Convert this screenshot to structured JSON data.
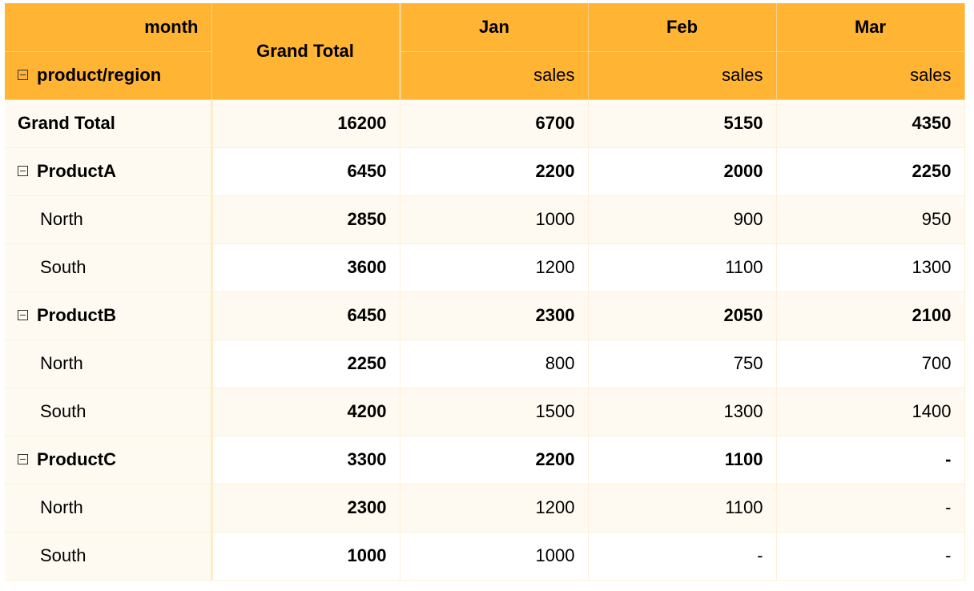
{
  "header": {
    "column_dimension_label": "month",
    "row_dimension_label": "product/region",
    "grand_total_label": "Grand Total",
    "months": [
      "Jan",
      "Feb",
      "Mar"
    ],
    "measure_label": "sales"
  },
  "rows": [
    {
      "label": "Grand Total",
      "level": "total",
      "collapsible": false,
      "grand": "16200",
      "values": [
        "6700",
        "5150",
        "4350"
      ]
    },
    {
      "label": "ProductA",
      "level": "group",
      "collapsible": true,
      "grand": "6450",
      "values": [
        "2200",
        "2000",
        "2250"
      ]
    },
    {
      "label": "North",
      "level": "child",
      "collapsible": false,
      "grand": "2850",
      "values": [
        "1000",
        "900",
        "950"
      ]
    },
    {
      "label": "South",
      "level": "child",
      "collapsible": false,
      "grand": "3600",
      "values": [
        "1200",
        "1100",
        "1300"
      ]
    },
    {
      "label": "ProductB",
      "level": "group",
      "collapsible": true,
      "grand": "6450",
      "values": [
        "2300",
        "2050",
        "2100"
      ]
    },
    {
      "label": "North",
      "level": "child",
      "collapsible": false,
      "grand": "2250",
      "values": [
        "800",
        "750",
        "700"
      ]
    },
    {
      "label": "South",
      "level": "child",
      "collapsible": false,
      "grand": "4200",
      "values": [
        "1500",
        "1300",
        "1400"
      ]
    },
    {
      "label": "ProductC",
      "level": "group",
      "collapsible": true,
      "grand": "3300",
      "values": [
        "2200",
        "1100",
        "-"
      ]
    },
    {
      "label": "North",
      "level": "child",
      "collapsible": false,
      "grand": "2300",
      "values": [
        "1200",
        "1100",
        "-"
      ]
    },
    {
      "label": "South",
      "level": "child",
      "collapsible": false,
      "grand": "1000",
      "values": [
        "1000",
        "-",
        "-"
      ]
    }
  ],
  "icons": {
    "collapse": "collapse-minus-icon"
  },
  "colors": {
    "header_bg": "#ffb433",
    "row_alt_bg": "#fffaf1",
    "row_bg": "#ffffff",
    "border": "#fbd18b"
  }
}
